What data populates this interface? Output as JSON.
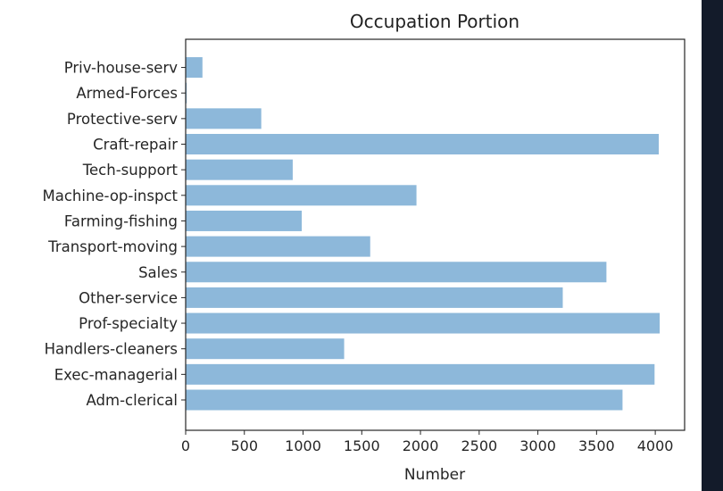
{
  "chart_data": {
    "type": "bar",
    "orientation": "horizontal",
    "title": "Occupation Portion",
    "xlabel": "Number",
    "ylabel": "",
    "categories": [
      "Adm-clerical",
      "Exec-managerial",
      "Handlers-cleaners",
      "Prof-specialty",
      "Other-service",
      "Sales",
      "Transport-moving",
      "Farming-fishing",
      "Machine-op-inspct",
      "Tech-support",
      "Craft-repair",
      "Protective-serv",
      "Armed-Forces",
      "Priv-house-serv"
    ],
    "values": [
      3721,
      3994,
      1350,
      4038,
      3212,
      3584,
      1572,
      989,
      1966,
      912,
      4030,
      644,
      9,
      143
    ],
    "xlim": [
      0,
      4250
    ],
    "xticks": [
      0,
      500,
      1000,
      1500,
      2000,
      2500,
      3000,
      3500,
      4000
    ],
    "grid": false,
    "legend": "none",
    "colors": {
      "bar": "#8db8da",
      "frame": "#262626",
      "right_strip": "#131b2a"
    }
  }
}
